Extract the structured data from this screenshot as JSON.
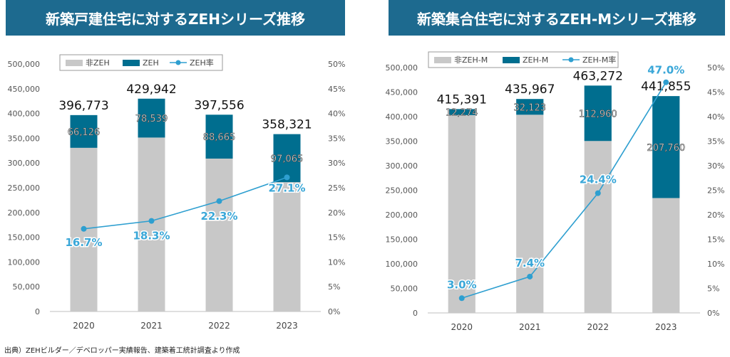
{
  "source_note": "出典）ZEHビルダー／デベロッパー実績報告、建築着工統計調査より作成",
  "colors": {
    "banner": "#1d6a8f",
    "non_zeh": "#c8c8c8",
    "zeh": "#006e8f",
    "rate_line": "#2e9fd0"
  },
  "chart_data": [
    {
      "type": "bar",
      "title": "新築戸建住宅に対するZEHシリーズ推移",
      "categories": [
        "2020",
        "2021",
        "2022",
        "2023"
      ],
      "series": [
        {
          "name": "非ZEH",
          "kind": "stacked-bar",
          "values": [
            330647,
            351403,
            308891,
            261256
          ]
        },
        {
          "name": "ZEH",
          "kind": "stacked-bar",
          "values": [
            66126,
            78539,
            88665,
            97065
          ]
        },
        {
          "name": "ZEH率",
          "kind": "line",
          "axis": "right",
          "values": [
            16.7,
            18.3,
            22.3,
            27.1
          ]
        }
      ],
      "totals": [
        396773,
        429942,
        397556,
        358321
      ],
      "total_labels": [
        "396,773",
        "429,942",
        "397,556",
        "358,321"
      ],
      "zeh_labels": [
        "66,126",
        "78,539",
        "88,665",
        "97,065"
      ],
      "rate_labels": [
        "16.7%",
        "18.3%",
        "22.3%",
        "27.1%"
      ],
      "ylim": [
        0,
        500000
      ],
      "y_ticks": [
        "0",
        "50,000",
        "100,000",
        "150,000",
        "200,000",
        "250,000",
        "300,000",
        "350,000",
        "400,000",
        "450,000",
        "500,000"
      ],
      "y2lim": [
        0,
        50
      ],
      "y2_ticks": [
        "0%",
        "5%",
        "10%",
        "15%",
        "20%",
        "25%",
        "30%",
        "35%",
        "40%",
        "45%",
        "50%"
      ],
      "legend": "top-center",
      "grid": false
    },
    {
      "type": "bar",
      "title": "新築集合住宅に対するZEH-Mシリーズ推移",
      "categories": [
        "2020",
        "2021",
        "2022",
        "2023"
      ],
      "series": [
        {
          "name": "非ZEH-M",
          "kind": "stacked-bar",
          "values": [
            403117,
            403844,
            350312,
            234095
          ]
        },
        {
          "name": "ZEH-M",
          "kind": "stacked-bar",
          "values": [
            12274,
            32123,
            112960,
            207760
          ]
        },
        {
          "name": "ZEH-M率",
          "kind": "line",
          "axis": "right",
          "values": [
            3.0,
            7.4,
            24.4,
            47.0
          ]
        }
      ],
      "totals": [
        415391,
        435967,
        463272,
        441855
      ],
      "total_labels": [
        "415,391",
        "435,967",
        "463,272",
        "441,855"
      ],
      "zeh_labels": [
        "12,274",
        "32,123",
        "112,960",
        "207,760"
      ],
      "rate_labels": [
        "3.0%",
        "7.4%",
        "24.4%",
        "47.0%"
      ],
      "ylim": [
        0,
        500000
      ],
      "y_ticks": [
        "0",
        "50,000",
        "100,000",
        "150,000",
        "200,000",
        "250,000",
        "300,000",
        "350,000",
        "400,000",
        "450,000",
        "500,000"
      ],
      "y2lim": [
        0,
        50
      ],
      "y2_ticks": [
        "0%",
        "5%",
        "10%",
        "15%",
        "20%",
        "25%",
        "30%",
        "35%",
        "40%",
        "45%",
        "50%"
      ],
      "legend": "top-center",
      "grid": false
    }
  ]
}
